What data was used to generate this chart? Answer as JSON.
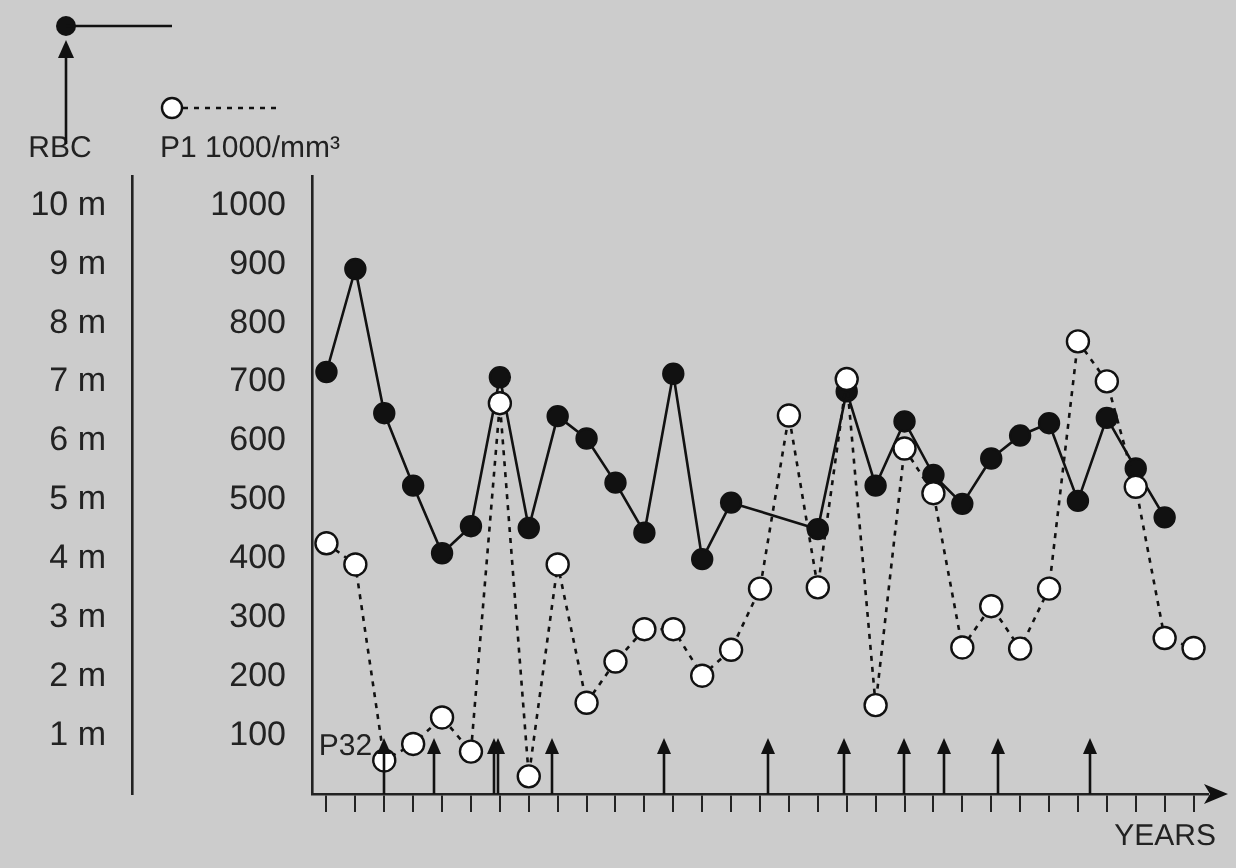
{
  "chart_data": {
    "type": "line",
    "xlabel": "YEARS",
    "ylabel": "P1 1000/mm³",
    "y2label": "RBC",
    "annotations": [
      "P32"
    ],
    "categories": [
      null,
      null,
      null,
      null,
      null,
      null,
      null,
      null,
      null,
      null,
      null,
      null,
      null,
      null,
      null,
      null,
      null,
      null,
      null,
      null,
      null,
      null,
      null,
      null,
      null,
      null,
      null,
      null,
      null,
      null,
      null
    ],
    "series": [
      {
        "color": "#111111",
        "axis": "y2",
        "marker": "circle",
        "line_style": "solid",
        "values": [
          7.17,
          8.92,
          6.47,
          5.24,
          4.09,
          4.55,
          7.08,
          4.52,
          6.42,
          6.04,
          5.29,
          4.44,
          7.14,
          3.99,
          4.95,
          null,
          null,
          4.5,
          6.84,
          5.24,
          6.33,
          5.42,
          4.93,
          5.7,
          6.09,
          6.3,
          4.98,
          6.39,
          5.53,
          4.7,
          null
        ]
      },
      {
        "color": "#111111",
        "marker": "circle",
        "line_style": "dotted",
        "values": [
          426,
          390,
          57,
          85,
          130,
          72,
          664,
          30,
          390,
          155,
          225,
          280,
          280,
          201,
          245,
          349,
          643,
          351,
          705,
          151,
          587,
          511,
          249,
          319,
          247,
          349,
          769,
          701,
          522,
          265,
          248
        ]
      }
    ],
    "ylim": [
      0,
      1050
    ],
    "yticks": [
      100,
      200,
      300,
      400,
      500,
      600,
      700,
      800,
      900,
      1000
    ],
    "y2lim": [
      0,
      10.5
    ],
    "y2ticks": [
      {
        "value": 1,
        "label": "1 m"
      },
      {
        "value": 2,
        "label": "2 m"
      },
      {
        "value": 3,
        "label": "3 m"
      },
      {
        "value": 4,
        "label": "4 m"
      },
      {
        "value": 5,
        "label": "5 m"
      },
      {
        "value": 6,
        "label": "6 m"
      },
      {
        "value": 7,
        "label": "7 m"
      },
      {
        "value": 8,
        "label": "8 m"
      },
      {
        "value": 9,
        "label": "9 m"
      },
      {
        "value": 10,
        "label": "10 m"
      }
    ],
    "tick_labels": "y"
  }
}
